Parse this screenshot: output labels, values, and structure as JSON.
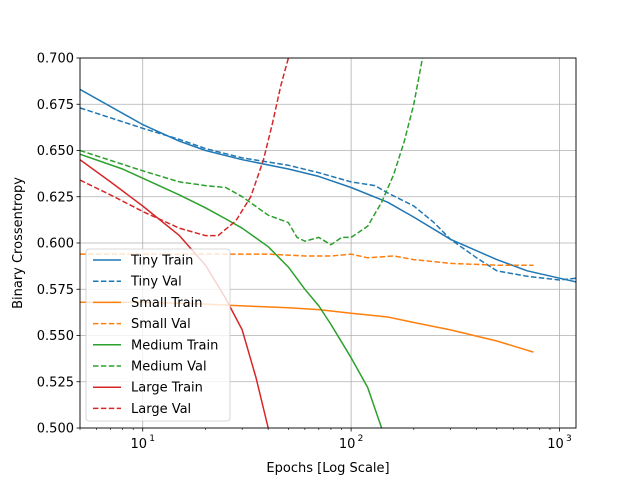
{
  "chart_data": {
    "type": "line",
    "title": "",
    "xlabel": "Epochs [Log Scale]",
    "ylabel": "Binary Crossentropy",
    "xscale": "log",
    "xlim": [
      5,
      1200
    ],
    "ylim": [
      0.5,
      0.7
    ],
    "grid": true,
    "legend_position": "lower-left",
    "x_ticks": [
      {
        "value": 10,
        "base": "10",
        "exp": "1"
      },
      {
        "value": 100,
        "base": "10",
        "exp": "2"
      },
      {
        "value": 1000,
        "base": "10",
        "exp": "3"
      }
    ],
    "y_ticks": [
      {
        "value": 0.5,
        "label": "0.500"
      },
      {
        "value": 0.525,
        "label": "0.525"
      },
      {
        "value": 0.55,
        "label": "0.550"
      },
      {
        "value": 0.575,
        "label": "0.575"
      },
      {
        "value": 0.6,
        "label": "0.600"
      },
      {
        "value": 0.625,
        "label": "0.625"
      },
      {
        "value": 0.65,
        "label": "0.650"
      },
      {
        "value": 0.675,
        "label": "0.675"
      },
      {
        "value": 0.7,
        "label": "0.700"
      }
    ],
    "series": [
      {
        "name": "Tiny Train",
        "color": "#1f77b4",
        "dash": false,
        "points": [
          [
            5,
            0.683
          ],
          [
            10,
            0.664
          ],
          [
            15,
            0.655
          ],
          [
            20,
            0.65
          ],
          [
            30,
            0.645
          ],
          [
            50,
            0.64
          ],
          [
            70,
            0.636
          ],
          [
            100,
            0.63
          ],
          [
            150,
            0.622
          ],
          [
            200,
            0.614
          ],
          [
            300,
            0.602
          ],
          [
            500,
            0.591
          ],
          [
            700,
            0.585
          ],
          [
            1000,
            0.581
          ],
          [
            1200,
            0.579
          ]
        ]
      },
      {
        "name": "Tiny Val",
        "color": "#1f77b4",
        "dash": true,
        "points": [
          [
            5,
            0.673
          ],
          [
            10,
            0.662
          ],
          [
            15,
            0.656
          ],
          [
            20,
            0.651
          ],
          [
            30,
            0.646
          ],
          [
            50,
            0.642
          ],
          [
            70,
            0.638
          ],
          [
            100,
            0.633
          ],
          [
            130,
            0.631
          ],
          [
            150,
            0.627
          ],
          [
            200,
            0.62
          ],
          [
            250,
            0.611
          ],
          [
            300,
            0.602
          ],
          [
            400,
            0.592
          ],
          [
            500,
            0.585
          ],
          [
            700,
            0.582
          ],
          [
            1000,
            0.58
          ],
          [
            1200,
            0.581
          ]
        ]
      },
      {
        "name": "Small Train",
        "color": "#ff7f0e",
        "dash": false,
        "points": [
          [
            5,
            0.568
          ],
          [
            10,
            0.568
          ],
          [
            20,
            0.567
          ],
          [
            30,
            0.566
          ],
          [
            50,
            0.565
          ],
          [
            70,
            0.564
          ],
          [
            100,
            0.562
          ],
          [
            150,
            0.56
          ],
          [
            200,
            0.557
          ],
          [
            300,
            0.553
          ],
          [
            500,
            0.547
          ],
          [
            750,
            0.541
          ]
        ]
      },
      {
        "name": "Small Val",
        "color": "#ff7f0e",
        "dash": true,
        "points": [
          [
            5,
            0.594
          ],
          [
            10,
            0.594
          ],
          [
            20,
            0.594
          ],
          [
            40,
            0.594
          ],
          [
            60,
            0.593
          ],
          [
            80,
            0.593
          ],
          [
            100,
            0.594
          ],
          [
            120,
            0.592
          ],
          [
            160,
            0.593
          ],
          [
            200,
            0.591
          ],
          [
            300,
            0.589
          ],
          [
            500,
            0.588
          ],
          [
            750,
            0.588
          ]
        ]
      },
      {
        "name": "Medium Train",
        "color": "#2ca02c",
        "dash": false,
        "points": [
          [
            5,
            0.648
          ],
          [
            8,
            0.64
          ],
          [
            10,
            0.635
          ],
          [
            15,
            0.626
          ],
          [
            20,
            0.619
          ],
          [
            25,
            0.613
          ],
          [
            30,
            0.608
          ],
          [
            40,
            0.598
          ],
          [
            50,
            0.587
          ],
          [
            60,
            0.575
          ],
          [
            70,
            0.566
          ],
          [
            80,
            0.556
          ],
          [
            100,
            0.538
          ],
          [
            120,
            0.522
          ],
          [
            140,
            0.5
          ]
        ]
      },
      {
        "name": "Medium Val",
        "color": "#2ca02c",
        "dash": true,
        "points": [
          [
            5,
            0.65
          ],
          [
            10,
            0.639
          ],
          [
            15,
            0.633
          ],
          [
            20,
            0.631
          ],
          [
            25,
            0.63
          ],
          [
            30,
            0.625
          ],
          [
            40,
            0.615
          ],
          [
            50,
            0.611
          ],
          [
            55,
            0.603
          ],
          [
            60,
            0.601
          ],
          [
            70,
            0.603
          ],
          [
            80,
            0.599
          ],
          [
            90,
            0.603
          ],
          [
            100,
            0.603
          ],
          [
            120,
            0.609
          ],
          [
            140,
            0.622
          ],
          [
            160,
            0.637
          ],
          [
            180,
            0.655
          ],
          [
            200,
            0.675
          ],
          [
            220,
            0.7
          ]
        ]
      },
      {
        "name": "Large Train",
        "color": "#d62728",
        "dash": false,
        "points": [
          [
            5,
            0.645
          ],
          [
            7,
            0.633
          ],
          [
            10,
            0.62
          ],
          [
            15,
            0.604
          ],
          [
            20,
            0.588
          ],
          [
            25,
            0.57
          ],
          [
            30,
            0.553
          ],
          [
            35,
            0.527
          ],
          [
            40,
            0.5
          ]
        ]
      },
      {
        "name": "Large Val",
        "color": "#d62728",
        "dash": true,
        "points": [
          [
            5,
            0.634
          ],
          [
            7,
            0.626
          ],
          [
            10,
            0.617
          ],
          [
            15,
            0.608
          ],
          [
            20,
            0.604
          ],
          [
            23,
            0.604
          ],
          [
            28,
            0.612
          ],
          [
            33,
            0.625
          ],
          [
            38,
            0.645
          ],
          [
            42,
            0.665
          ],
          [
            46,
            0.685
          ],
          [
            50,
            0.7
          ]
        ]
      }
    ]
  }
}
